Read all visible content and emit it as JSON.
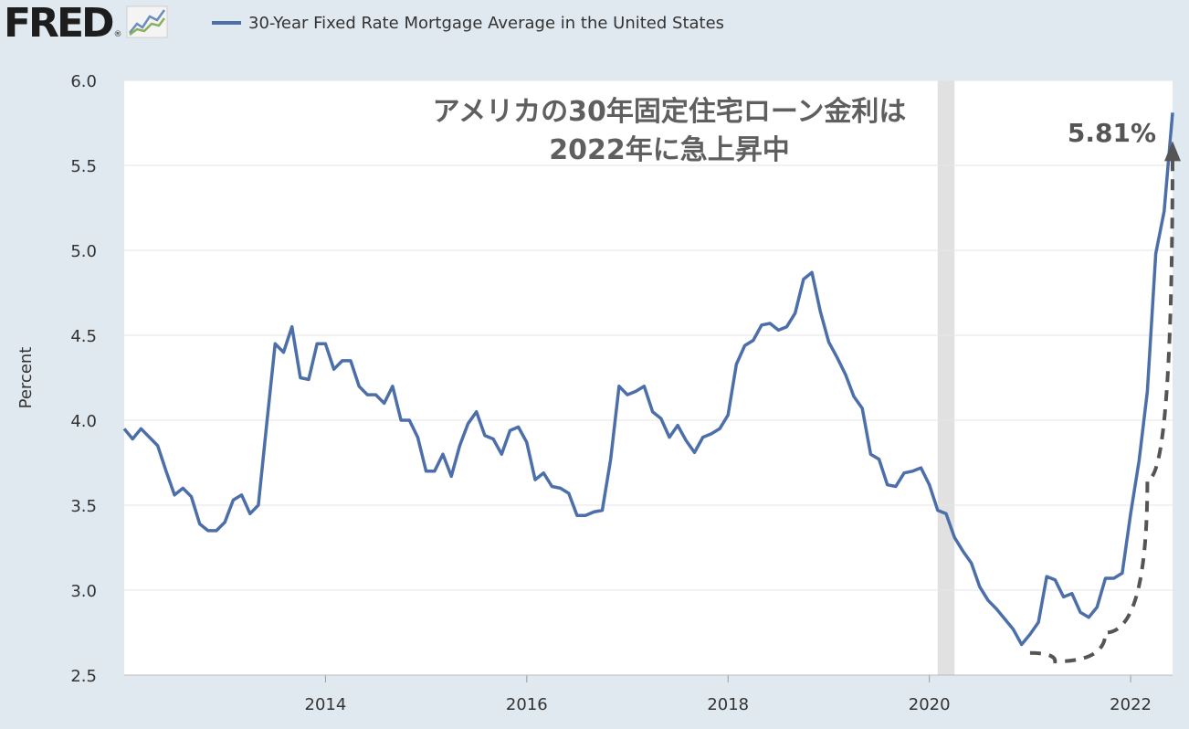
{
  "header": {
    "logo_text": "FRED",
    "logo_mark": "®",
    "logo_icon": "line-chart-icon",
    "legend_label": "30-Year Fixed Rate Mortgage Average in the United States"
  },
  "colors": {
    "background": "#e1e9f0",
    "plot_background": "#ffffff",
    "series": "#4c6fa9",
    "recession": "#e1e1e1",
    "annotation": "#555555"
  },
  "chart_data": {
    "type": "line",
    "title": "アメリカの30年固定住宅ローン金利は",
    "subtitle": "2022年に急上昇中",
    "ylabel": "Percent",
    "ylim": [
      2.5,
      6.0
    ],
    "xlim": [
      "2012-01",
      "2022-06"
    ],
    "yticks": [
      "2.5",
      "3.0",
      "3.5",
      "4.0",
      "4.5",
      "5.0",
      "5.5",
      "6.0"
    ],
    "xticks": [
      "2014",
      "2016",
      "2018",
      "2020",
      "2022"
    ],
    "grid": true,
    "recession": {
      "start": "2020-02",
      "end": "2020-04"
    },
    "annotation": {
      "text": "5.81%",
      "value": 5.81,
      "date": "2022-06"
    },
    "trend_arrow": {
      "style": "dashed",
      "points": [
        [
          "2021-01",
          2.63
        ],
        [
          "2021-04",
          2.58
        ],
        [
          "2021-10",
          2.75
        ],
        [
          "2022-03",
          3.65
        ],
        [
          "2022-06",
          5.6
        ]
      ]
    },
    "series": [
      {
        "name": "30-Year Fixed Rate Mortgage Average in the United States",
        "points": [
          [
            "2012-01",
            3.95
          ],
          [
            "2012-02",
            3.89
          ],
          [
            "2012-03",
            3.95
          ],
          [
            "2012-04",
            3.9
          ],
          [
            "2012-05",
            3.85
          ],
          [
            "2012-06",
            3.7
          ],
          [
            "2012-07",
            3.56
          ],
          [
            "2012-08",
            3.6
          ],
          [
            "2012-09",
            3.55
          ],
          [
            "2012-10",
            3.39
          ],
          [
            "2012-11",
            3.35
          ],
          [
            "2012-12",
            3.35
          ],
          [
            "2013-01",
            3.4
          ],
          [
            "2013-02",
            3.53
          ],
          [
            "2013-03",
            3.56
          ],
          [
            "2013-04",
            3.45
          ],
          [
            "2013-05",
            3.5
          ],
          [
            "2013-06",
            3.98
          ],
          [
            "2013-07",
            4.45
          ],
          [
            "2013-08",
            4.4
          ],
          [
            "2013-09",
            4.55
          ],
          [
            "2013-10",
            4.25
          ],
          [
            "2013-11",
            4.24
          ],
          [
            "2013-12",
            4.45
          ],
          [
            "2014-01",
            4.45
          ],
          [
            "2014-02",
            4.3
          ],
          [
            "2014-03",
            4.35
          ],
          [
            "2014-04",
            4.35
          ],
          [
            "2014-05",
            4.2
          ],
          [
            "2014-06",
            4.15
          ],
          [
            "2014-07",
            4.15
          ],
          [
            "2014-08",
            4.1
          ],
          [
            "2014-09",
            4.2
          ],
          [
            "2014-10",
            4.0
          ],
          [
            "2014-11",
            4.0
          ],
          [
            "2014-12",
            3.9
          ],
          [
            "2015-01",
            3.7
          ],
          [
            "2015-02",
            3.7
          ],
          [
            "2015-03",
            3.8
          ],
          [
            "2015-04",
            3.67
          ],
          [
            "2015-05",
            3.85
          ],
          [
            "2015-06",
            3.98
          ],
          [
            "2015-07",
            4.05
          ],
          [
            "2015-08",
            3.91
          ],
          [
            "2015-09",
            3.89
          ],
          [
            "2015-10",
            3.8
          ],
          [
            "2015-11",
            3.94
          ],
          [
            "2015-12",
            3.96
          ],
          [
            "2016-01",
            3.87
          ],
          [
            "2016-02",
            3.65
          ],
          [
            "2016-03",
            3.69
          ],
          [
            "2016-04",
            3.61
          ],
          [
            "2016-05",
            3.6
          ],
          [
            "2016-06",
            3.57
          ],
          [
            "2016-07",
            3.44
          ],
          [
            "2016-08",
            3.44
          ],
          [
            "2016-09",
            3.46
          ],
          [
            "2016-10",
            3.47
          ],
          [
            "2016-11",
            3.77
          ],
          [
            "2016-12",
            4.2
          ],
          [
            "2017-01",
            4.15
          ],
          [
            "2017-02",
            4.17
          ],
          [
            "2017-03",
            4.2
          ],
          [
            "2017-04",
            4.05
          ],
          [
            "2017-05",
            4.01
          ],
          [
            "2017-06",
            3.9
          ],
          [
            "2017-07",
            3.97
          ],
          [
            "2017-08",
            3.88
          ],
          [
            "2017-09",
            3.81
          ],
          [
            "2017-10",
            3.9
          ],
          [
            "2017-11",
            3.92
          ],
          [
            "2017-12",
            3.95
          ],
          [
            "2018-01",
            4.03
          ],
          [
            "2018-02",
            4.33
          ],
          [
            "2018-03",
            4.44
          ],
          [
            "2018-04",
            4.47
          ],
          [
            "2018-05",
            4.56
          ],
          [
            "2018-06",
            4.57
          ],
          [
            "2018-07",
            4.53
          ],
          [
            "2018-08",
            4.55
          ],
          [
            "2018-09",
            4.63
          ],
          [
            "2018-10",
            4.83
          ],
          [
            "2018-11",
            4.87
          ],
          [
            "2018-12",
            4.64
          ],
          [
            "2019-01",
            4.46
          ],
          [
            "2019-02",
            4.37
          ],
          [
            "2019-03",
            4.27
          ],
          [
            "2019-04",
            4.14
          ],
          [
            "2019-05",
            4.07
          ],
          [
            "2019-06",
            3.8
          ],
          [
            "2019-07",
            3.77
          ],
          [
            "2019-08",
            3.62
          ],
          [
            "2019-09",
            3.61
          ],
          [
            "2019-10",
            3.69
          ],
          [
            "2019-11",
            3.7
          ],
          [
            "2019-12",
            3.72
          ],
          [
            "2020-01",
            3.62
          ],
          [
            "2020-02",
            3.47
          ],
          [
            "2020-03",
            3.45
          ],
          [
            "2020-04",
            3.31
          ],
          [
            "2020-05",
            3.23
          ],
          [
            "2020-06",
            3.16
          ],
          [
            "2020-07",
            3.02
          ],
          [
            "2020-08",
            2.94
          ],
          [
            "2020-09",
            2.89
          ],
          [
            "2020-10",
            2.83
          ],
          [
            "2020-11",
            2.77
          ],
          [
            "2020-12",
            2.68
          ],
          [
            "2021-01",
            2.74
          ],
          [
            "2021-02",
            2.81
          ],
          [
            "2021-03",
            3.08
          ],
          [
            "2021-04",
            3.06
          ],
          [
            "2021-05",
            2.96
          ],
          [
            "2021-06",
            2.98
          ],
          [
            "2021-07",
            2.87
          ],
          [
            "2021-08",
            2.84
          ],
          [
            "2021-09",
            2.9
          ],
          [
            "2021-10",
            3.07
          ],
          [
            "2021-11",
            3.07
          ],
          [
            "2021-12",
            3.1
          ],
          [
            "2022-01",
            3.45
          ],
          [
            "2022-02",
            3.76
          ],
          [
            "2022-03",
            4.17
          ],
          [
            "2022-04",
            4.98
          ],
          [
            "2022-05",
            5.23
          ],
          [
            "2022-06",
            5.81
          ]
        ]
      }
    ]
  }
}
